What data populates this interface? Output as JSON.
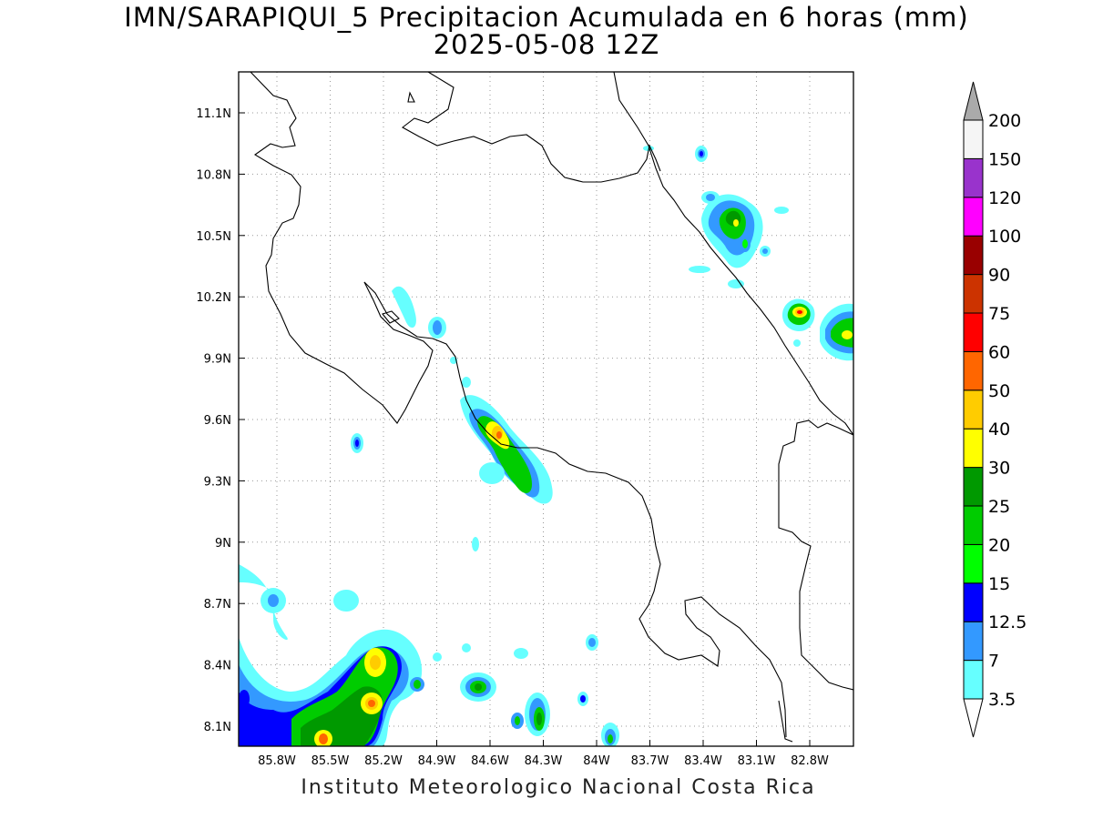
{
  "title": {
    "line1": "IMN/SARAPIQUI_5 Precipitacion Acumulada en 6 horas (mm)",
    "line2": "2025-05-08 12Z"
  },
  "footer": "Instituto Meteorologico Nacional Costa Rica",
  "axes": {
    "lat_ticks": [
      "11.1N",
      "10.8N",
      "10.5N",
      "10.2N",
      "9.9N",
      "9.6N",
      "9.3N",
      "9N",
      "8.7N",
      "8.4N",
      "8.1N"
    ],
    "lon_ticks": [
      "85.8W",
      "85.5W",
      "85.2W",
      "84.9W",
      "84.6W",
      "84.3W",
      "84W",
      "83.7W",
      "83.4W",
      "83.1W",
      "82.8W"
    ],
    "grid": true
  },
  "colorbar": {
    "levels": [
      "3.5",
      "7",
      "12.5",
      "15",
      "20",
      "25",
      "30",
      "40",
      "50",
      "60",
      "75",
      "90",
      "100",
      "120",
      "150",
      "200"
    ],
    "colors": [
      "#66ffff",
      "#3399ff",
      "#0000ff",
      "#00ff00",
      "#00cc00",
      "#009900",
      "#ffff00",
      "#ffcc00",
      "#ff6600",
      "#ff0000",
      "#cc3300",
      "#990000",
      "#ff00ff",
      "#9933cc",
      "#f5f5f5"
    ],
    "over_color": "#aaaaaa",
    "under_color": "#ffffff"
  }
}
